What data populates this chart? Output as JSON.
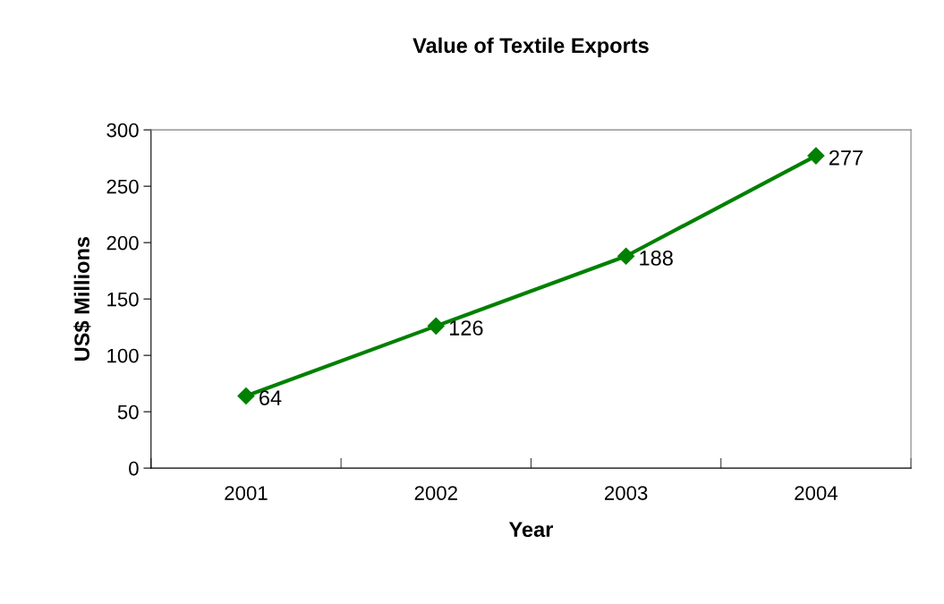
{
  "chart_data": {
    "type": "line",
    "title": "Value of Textile Exports",
    "xlabel": "Year",
    "ylabel": "US$ Millions",
    "categories": [
      "2001",
      "2002",
      "2003",
      "2004"
    ],
    "series": [
      {
        "color": "#008000",
        "values": [
          64,
          126,
          188,
          277
        ]
      }
    ],
    "ylim": [
      0,
      300
    ],
    "yticks": [
      0,
      50,
      100,
      150,
      200,
      250,
      300
    ],
    "data_labels": true,
    "marker": "diamond",
    "line_style": "solid",
    "grid": false,
    "legend": false
  }
}
